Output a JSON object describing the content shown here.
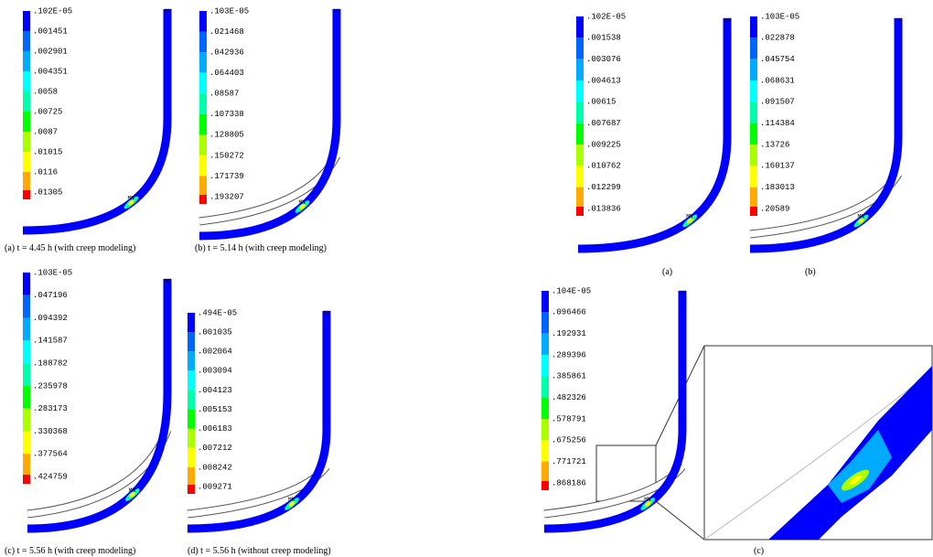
{
  "legend_colors": [
    "#0000ff",
    "#0064ff",
    "#00aaff",
    "#00ffff",
    "#00ffaa",
    "#00ff00",
    "#aaff00",
    "#ffff00",
    "#ffaa00",
    "#ff0000"
  ],
  "panels": [
    {
      "labels": [
        ".102E-05",
        ".001451",
        ".002901",
        ".004351",
        ".0058",
        ".00725",
        ".0087",
        ".01015",
        ".0116",
        ".01305"
      ],
      "caption": "(a) t = 4.45 h (with creep modeling)",
      "markers": [
        "MX",
        "MN"
      ]
    },
    {
      "labels": [
        ".103E-05",
        ".021468",
        ".042936",
        ".064403",
        ".08587",
        ".107338",
        ".128805",
        ".150272",
        ".171739",
        ".193207"
      ],
      "caption": "(b) t = 5.14 h (with creep modeling)",
      "markers": [
        "MX",
        "MN"
      ]
    },
    {
      "labels": [
        ".103E-05",
        ".047196",
        ".094392",
        ".141587",
        ".188782",
        ".235978",
        ".283173",
        ".330368",
        ".377564",
        ".424759"
      ],
      "caption": "(c) t = 5.56 h (with creep modeling)",
      "markers": [
        "MX",
        "MN"
      ]
    },
    {
      "labels": [
        ".494E-05",
        ".001035",
        ".002064",
        ".003094",
        ".004123",
        ".005153",
        ".006183",
        ".007212",
        ".008242",
        ".009271"
      ],
      "caption": "(d) t = 5.56 h (without creep modeling)",
      "markers": [
        "MX",
        "MN"
      ]
    },
    {
      "labels": [
        ".102E-05",
        ".001538",
        ".003076",
        ".004613",
        ".00615",
        ".007687",
        ".009225",
        ".010762",
        ".012299",
        ".013836"
      ],
      "caption": "(a)",
      "markers": [
        "MX",
        "MN"
      ]
    },
    {
      "labels": [
        ".103E-05",
        ".022878",
        ".045754",
        ".068631",
        ".091507",
        ".114384",
        ".13726",
        ".160137",
        ".183013",
        ".20589"
      ],
      "caption": "(b)",
      "markers": [
        "MX",
        "MN"
      ]
    },
    {
      "labels": [
        ".104E-05",
        ".096466",
        ".192931",
        ".289396",
        ".385861",
        ".482326",
        ".578791",
        ".675256",
        ".771721",
        ".868186"
      ],
      "caption": "(c)",
      "markers": [
        "MX",
        "MN"
      ]
    }
  ]
}
